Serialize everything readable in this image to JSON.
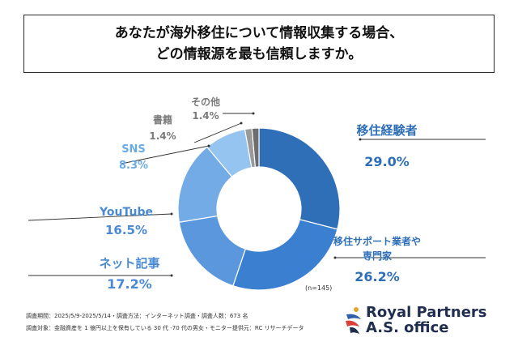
{
  "title": {
    "line1": "あなたが海外移住について情報収集する場合、",
    "line2": "どの情報源を最も信頼しますか。"
  },
  "chart_data": {
    "type": "pie",
    "style": "donut",
    "n_label": "(n=145)",
    "slices": [
      {
        "label": "移住経験者",
        "value": 29.0,
        "value_label": "29.0%",
        "color": "#2e6fb8",
        "label_color": "#2e6fb8"
      },
      {
        "label": "移住サポート業者や専門家",
        "label_lines": [
          "移住サポート業者や",
          "専門家"
        ],
        "value": 26.2,
        "value_label": "26.2%",
        "color": "#3b7fd0",
        "label_color": "#2e6fb8"
      },
      {
        "label": "ネット記事",
        "value": 17.2,
        "value_label": "17.2%",
        "color": "#5a97dc",
        "label_color": "#4a8ad4"
      },
      {
        "label": "YouTube",
        "value": 16.5,
        "value_label": "16.5%",
        "color": "#73abe6",
        "label_color": "#4a8ad4"
      },
      {
        "label": "SNS",
        "value": 8.3,
        "value_label": "8.3%",
        "color": "#95c4f0",
        "label_color": "#6aaae6"
      },
      {
        "label": "書籍",
        "value": 1.4,
        "value_label": "1.4%",
        "color": "#9a9a9a",
        "label_color": "#7a7a7a"
      },
      {
        "label": "その他",
        "value": 1.4,
        "value_label": "1.4%",
        "color": "#6d6d6d",
        "label_color": "#7a7a7a"
      }
    ]
  },
  "footer": {
    "line1": "調査期間：2025/5/9-2025/5/14・調査方法：インターネット調査・調査人数：673 名",
    "line2": "調査対象：金融資産を 1 億円以上を保有している 30 代 -70 代の男女・モニター提供元：RC リサーチデータ"
  },
  "brand": {
    "line1": "Royal Partners",
    "line2": "A.S. office"
  }
}
